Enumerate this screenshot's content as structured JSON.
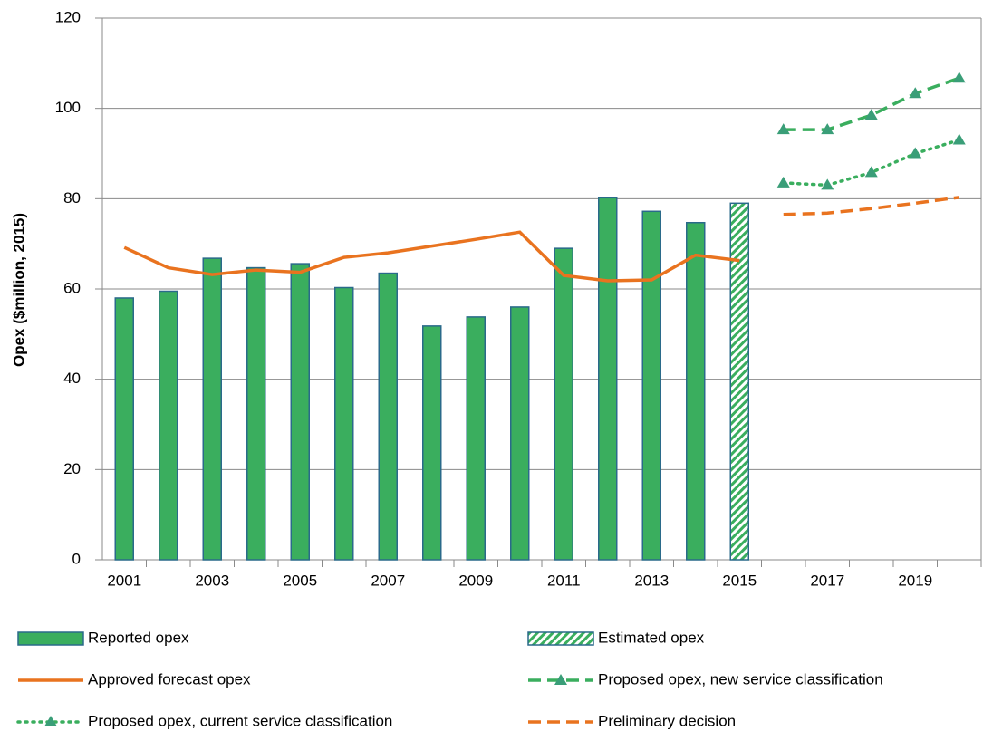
{
  "chart_data": {
    "type": "bar",
    "y_label": "Opex ($million, 2015)",
    "categories": [
      "2001",
      null,
      "2003",
      null,
      "2005",
      null,
      "2007",
      null,
      "2009",
      null,
      "2011",
      null,
      "2013",
      null,
      "2015",
      null,
      "2017",
      null,
      "2019",
      null
    ],
    "ylim": [
      0,
      120
    ],
    "yticks": [
      0,
      20,
      40,
      60,
      80,
      100,
      120
    ],
    "grid": true,
    "legend": "bottom",
    "series": [
      {
        "name": "Reported opex",
        "type": "bar",
        "color": "#3aae5e",
        "values": [
          58,
          59.5,
          66.8,
          64.7,
          65.6,
          60.3,
          63.5,
          51.8,
          53.8,
          56,
          69,
          80.2,
          77.2,
          74.7,
          null,
          null,
          null,
          null,
          null,
          null
        ]
      },
      {
        "name": "Estimated opex",
        "type": "bar",
        "color": "#3aae5e",
        "pattern": "hatch",
        "values": [
          null,
          null,
          null,
          null,
          null,
          null,
          null,
          null,
          null,
          null,
          null,
          null,
          null,
          null,
          79,
          null,
          null,
          null,
          null,
          null
        ]
      },
      {
        "name": "Approved forecast opex",
        "type": "line",
        "color": "#e9731f",
        "style": "solid",
        "values": [
          69.2,
          64.7,
          63.2,
          64.2,
          63.7,
          67,
          68,
          69.5,
          71,
          72.6,
          63,
          61.8,
          62,
          67.5,
          66.3,
          null,
          null,
          null,
          null,
          null
        ]
      },
      {
        "name": "Proposed opex, new service classification",
        "type": "line",
        "color": "#3aae5e",
        "style": "dashed",
        "marker": "triangle",
        "values": [
          null,
          null,
          null,
          null,
          null,
          null,
          null,
          null,
          null,
          null,
          null,
          null,
          null,
          null,
          null,
          95.3,
          95.3,
          98.5,
          103.3,
          106.7
        ]
      },
      {
        "name": "Proposed opex, current service classification",
        "type": "line",
        "color": "#3aae5e",
        "style": "dotted",
        "marker": "triangle",
        "values": [
          null,
          null,
          null,
          null,
          null,
          null,
          null,
          null,
          null,
          null,
          null,
          null,
          null,
          null,
          null,
          83.5,
          83,
          85.8,
          90,
          93
        ]
      },
      {
        "name": "Preliminary decision",
        "type": "line",
        "color": "#e9731f",
        "style": "dashed",
        "values": [
          null,
          null,
          null,
          null,
          null,
          null,
          null,
          null,
          null,
          null,
          null,
          null,
          null,
          null,
          null,
          76.5,
          76.8,
          77.8,
          79,
          80.3
        ]
      }
    ]
  }
}
